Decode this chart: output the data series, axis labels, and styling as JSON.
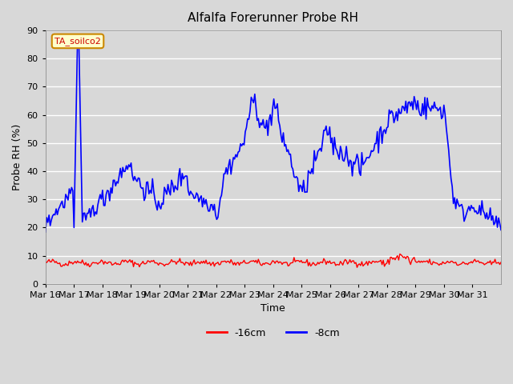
{
  "title": "Alfalfa Forerunner Probe RH",
  "ylabel": "Probe RH (%)",
  "xlabel": "Time",
  "annotation": "TA_soilco2",
  "ylim": [
    0,
    90
  ],
  "background_color": "#d8d8d8",
  "plot_bg_color": "#d8d8d8",
  "grid_color": "white",
  "legend_labels": [
    "-16cm",
    "-8cm"
  ],
  "legend_colors": [
    "#ff0000",
    "#0000ff"
  ],
  "x_tick_labels": [
    "Mar 16",
    "Mar 17",
    "Mar 18",
    "Mar 19",
    "Mar 20",
    "Mar 21",
    "Mar 22",
    "Mar 23",
    "Mar 24",
    "Mar 25",
    "Mar 26",
    "Mar 27",
    "Mar 28",
    "Mar 29",
    "Mar 30",
    "Mar 31"
  ],
  "yticks": [
    0,
    10,
    20,
    30,
    40,
    50,
    60,
    70,
    80,
    90
  ],
  "n_days": 16,
  "points_per_day": 24,
  "seed": 42
}
